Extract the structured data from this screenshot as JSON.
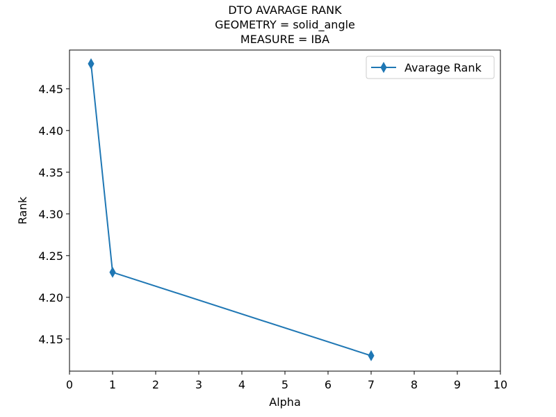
{
  "chart_data": {
    "type": "line",
    "title_lines": [
      "DTO AVARAGE RANK",
      "GEOMETRY = solid_angle",
      "MEASURE = IBA"
    ],
    "xlabel": "Alpha",
    "ylabel": "Rank",
    "xlim": [
      0,
      10
    ],
    "ylim": [
      4.1115,
      4.4965
    ],
    "x_ticks": [
      0,
      1,
      2,
      3,
      4,
      5,
      6,
      7,
      8,
      9,
      10
    ],
    "x_tick_labels": [
      "0",
      "1",
      "2",
      "3",
      "4",
      "5",
      "6",
      "7",
      "8",
      "9",
      "10"
    ],
    "y_ticks": [
      4.15,
      4.2,
      4.25,
      4.3,
      4.35,
      4.4,
      4.45
    ],
    "y_tick_labels": [
      "4.15",
      "4.20",
      "4.25",
      "4.30",
      "4.35",
      "4.40",
      "4.45"
    ],
    "grid": false,
    "legend_position": "top-right",
    "series": [
      {
        "name": "Avarage Rank",
        "color": "#1f77b4",
        "marker": "thin-diamond",
        "x": [
          0.5,
          1,
          7
        ],
        "y": [
          4.48,
          4.23,
          4.13
        ]
      }
    ]
  }
}
